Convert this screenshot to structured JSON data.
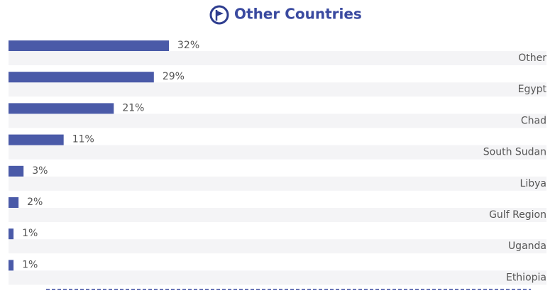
{
  "chart_data": {
    "type": "bar",
    "orientation": "horizontal",
    "title": "Other Countries",
    "categories": [
      "Other",
      "Egypt",
      "Chad",
      "South Sudan",
      "Libya",
      "Gulf Region",
      "Uganda",
      "Ethiopia"
    ],
    "values": [
      32,
      29,
      21,
      11,
      3,
      2,
      1,
      1
    ],
    "value_labels": [
      "32%",
      "29%",
      "21%",
      "11%",
      "3%",
      "2%",
      "1%",
      "1%"
    ],
    "color": "#4a5aa8"
  }
}
